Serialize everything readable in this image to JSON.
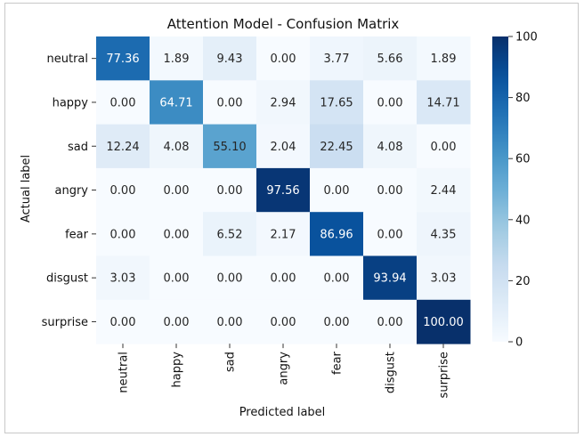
{
  "chart_data": {
    "type": "heatmap",
    "title": "Attention Model - Confusion Matrix",
    "xlabel": "Predicted label",
    "ylabel": "Actual label",
    "x_categories": [
      "neutral",
      "happy",
      "sad",
      "angry",
      "fear",
      "disgust",
      "surprise"
    ],
    "y_categories": [
      "neutral",
      "happy",
      "sad",
      "angry",
      "fear",
      "disgust",
      "surprise"
    ],
    "values": [
      [
        77.36,
        1.89,
        9.43,
        0.0,
        3.77,
        5.66,
        1.89
      ],
      [
        0.0,
        64.71,
        0.0,
        2.94,
        17.65,
        0.0,
        14.71
      ],
      [
        12.24,
        4.08,
        55.1,
        2.04,
        22.45,
        4.08,
        0.0
      ],
      [
        0.0,
        0.0,
        0.0,
        97.56,
        0.0,
        0.0,
        2.44
      ],
      [
        0.0,
        0.0,
        6.52,
        2.17,
        86.96,
        0.0,
        4.35
      ],
      [
        3.03,
        0.0,
        0.0,
        0.0,
        0.0,
        93.94,
        3.03
      ],
      [
        0.0,
        0.0,
        0.0,
        0.0,
        0.0,
        0.0,
        100.0
      ]
    ],
    "value_format": "0.00",
    "colorscale": "Blues",
    "colorbar_range": [
      0,
      100
    ],
    "colorbar_ticks": [
      0,
      20,
      40,
      60,
      80,
      100
    ],
    "grid": false
  }
}
